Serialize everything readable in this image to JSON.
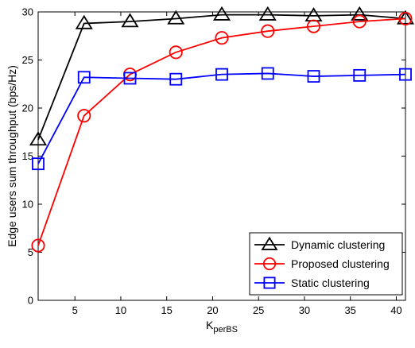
{
  "chart_data": {
    "type": "line",
    "xlabel": "K",
    "xlabel_sub": "perBS",
    "ylabel": "Edge users sum throughput (bps/Hz)",
    "xlim": [
      1,
      41
    ],
    "ylim": [
      0,
      30
    ],
    "xticks": [
      5,
      10,
      15,
      20,
      25,
      30,
      35,
      40
    ],
    "yticks": [
      0,
      5,
      10,
      15,
      20,
      25,
      30
    ],
    "grid": false,
    "legend_position": "bottom-right",
    "x": [
      1,
      6,
      11,
      16,
      21,
      26,
      31,
      36,
      41
    ],
    "series": [
      {
        "name": "Dynamic clustering",
        "color": "#000000",
        "marker": "triangle",
        "values": [
          16.7,
          28.8,
          29.0,
          29.3,
          29.7,
          29.7,
          29.6,
          29.7,
          29.3
        ]
      },
      {
        "name": "Proposed clustering",
        "color": "#ff0000",
        "marker": "circle",
        "values": [
          5.7,
          19.2,
          23.5,
          25.8,
          27.3,
          28.0,
          28.5,
          29.0,
          29.3
        ]
      },
      {
        "name": "Static clustering",
        "color": "#0000ff",
        "marker": "square",
        "values": [
          14.2,
          23.2,
          23.1,
          23.0,
          23.5,
          23.6,
          23.3,
          23.4,
          23.5
        ]
      }
    ]
  }
}
